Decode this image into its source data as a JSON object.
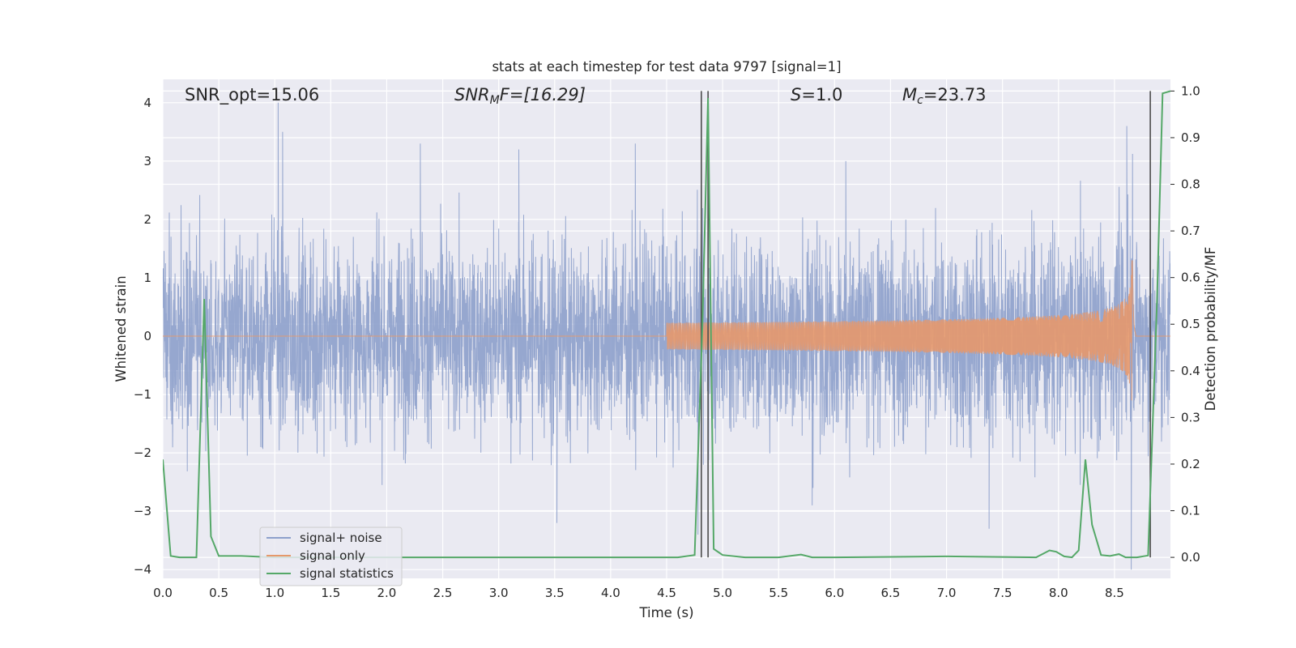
{
  "chart_data": {
    "type": "line",
    "title": "stats at each timestep for test data 9797 [signal=1]",
    "xlabel": "Time (s)",
    "ylabel": "Whitened strain",
    "y2label": "Detection probability/MF",
    "xlim": [
      0.0,
      9.0
    ],
    "ylim": [
      -4.15,
      4.4
    ],
    "y2lim": [
      -0.045,
      1.025
    ],
    "x_ticks": [
      "0.0",
      "0.5",
      "1.0",
      "1.5",
      "2.0",
      "2.5",
      "3.0",
      "3.5",
      "4.0",
      "4.5",
      "5.0",
      "5.5",
      "6.0",
      "6.5",
      "7.0",
      "7.5",
      "8.0",
      "8.5"
    ],
    "y_ticks": [
      "4",
      "3",
      "2",
      "1",
      "0",
      "−1",
      "−2",
      "−3",
      "−4"
    ],
    "y2_ticks": [
      "1.0",
      "0.9",
      "0.8",
      "0.7",
      "0.6",
      "0.5",
      "0.4",
      "0.3",
      "0.2",
      "0.1",
      "0.0"
    ],
    "grid": true,
    "legend_position": "lower-left",
    "annotations": {
      "snr_opt": "SNR_opt=15.06",
      "snr_mf_base": "SNR",
      "snr_mf_sub": "M",
      "snr_mf_rest": "F=[16.29]",
      "s_var": "S",
      "s_rest": "=1.0",
      "mc_var": "M",
      "mc_sub": "c",
      "mc_rest": "=23.73"
    },
    "vertical_markers_s": [
      4.81,
      4.87,
      8.82
    ],
    "series": [
      {
        "name": "signal+ noise",
        "axis": "left",
        "color": "#8da0cb",
        "noise_sigma": 0.82,
        "peaks": [
          [
            1.03,
            4.0
          ],
          [
            1.07,
            3.5
          ],
          [
            2.3,
            3.3
          ],
          [
            3.18,
            3.2
          ],
          [
            4.22,
            3.3
          ],
          [
            6.1,
            3.0
          ],
          [
            8.61,
            3.6
          ],
          [
            4.78,
            -3.4
          ],
          [
            3.52,
            -3.2
          ],
          [
            7.38,
            -3.3
          ],
          [
            8.65,
            -4.0
          ],
          [
            5.8,
            -2.9
          ]
        ]
      },
      {
        "name": "signal only",
        "axis": "left",
        "color": "#e5986b",
        "chirp_start_s": 4.5,
        "chirp_merger_s": 8.66,
        "peak_amplitude": 2.9
      },
      {
        "name": "signal statistics",
        "axis": "right",
        "color": "#55a868",
        "x": [
          0.0,
          0.07,
          0.15,
          0.3,
          0.37,
          0.43,
          0.5,
          0.7,
          1.0,
          2.0,
          3.0,
          4.0,
          4.6,
          4.75,
          4.82,
          4.87,
          4.92,
          5.0,
          5.2,
          5.5,
          5.7,
          5.8,
          6.0,
          7.0,
          7.8,
          7.92,
          7.98,
          8.05,
          8.12,
          8.18,
          8.24,
          8.3,
          8.38,
          8.46,
          8.54,
          8.6,
          8.7,
          8.8,
          8.88,
          8.93,
          9.0
        ],
        "values": [
          0.21,
          0.003,
          0.0,
          0.0,
          0.554,
          0.045,
          0.003,
          0.003,
          0.0,
          0.0,
          0.0,
          0.0,
          0.0,
          0.005,
          0.5,
          0.985,
          0.018,
          0.005,
          0.0,
          0.0,
          0.006,
          0.0,
          0.0,
          0.002,
          0.0,
          0.015,
          0.012,
          0.002,
          0.0,
          0.015,
          0.21,
          0.07,
          0.005,
          0.003,
          0.007,
          0.0,
          0.0,
          0.004,
          0.55,
          0.995,
          1.0
        ]
      }
    ]
  }
}
